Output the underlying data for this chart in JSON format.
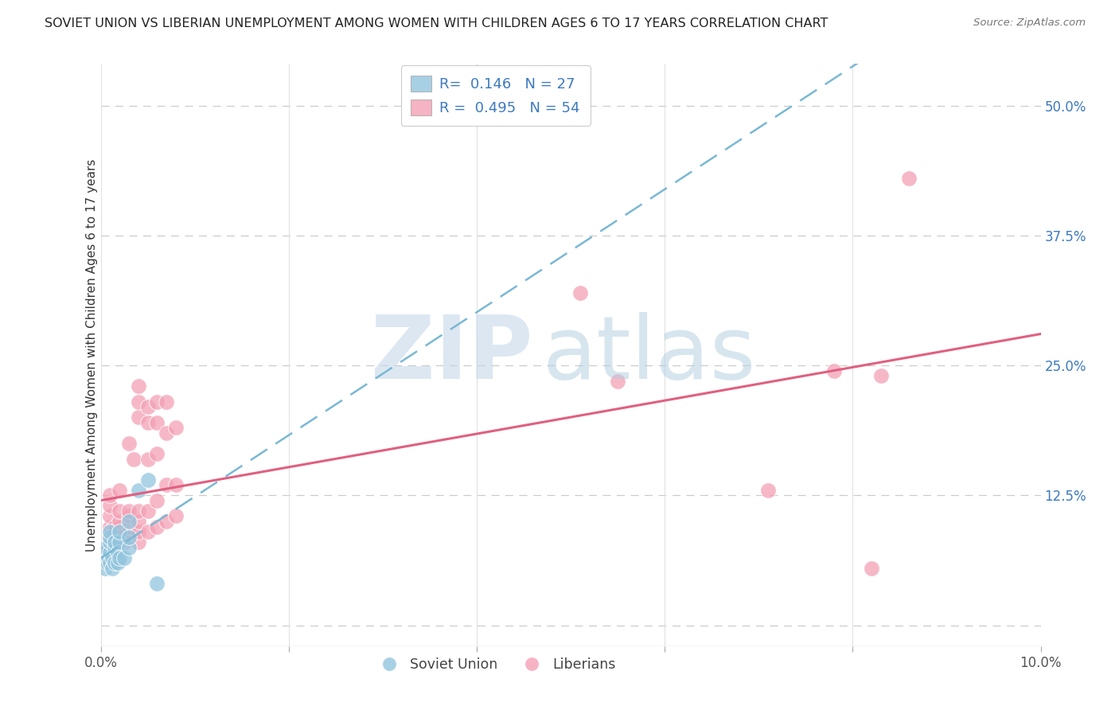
{
  "title": "SOVIET UNION VS LIBERIAN UNEMPLOYMENT AMONG WOMEN WITH CHILDREN AGES 6 TO 17 YEARS CORRELATION CHART",
  "source": "Source: ZipAtlas.com",
  "ylabel": "Unemployment Among Women with Children Ages 6 to 17 years",
  "xlim": [
    0.0,
    0.1
  ],
  "ylim": [
    -0.02,
    0.54
  ],
  "yticks": [
    0.0,
    0.125,
    0.25,
    0.375,
    0.5
  ],
  "ytick_labels": [
    "",
    "12.5%",
    "25.0%",
    "37.5%",
    "50.0%"
  ],
  "xticks": [
    0.0,
    0.02,
    0.04,
    0.06,
    0.08,
    0.1
  ],
  "xtick_labels": [
    "0.0%",
    "",
    "",
    "",
    "",
    "10.0%"
  ],
  "soviet_color": "#92c5de",
  "soviet_edge": "#5a9fc0",
  "liberian_color": "#f4a0b5",
  "liberian_edge": "#e06080",
  "trendline_soviet_color": "#7ab8d4",
  "trendline_liberian_color": "#e06080",
  "soviet_R": 0.146,
  "soviet_N": 27,
  "liberian_R": 0.495,
  "liberian_N": 54,
  "watermark_zip_color": "#c5d8ea",
  "watermark_atlas_color": "#b0cde0",
  "soviet_points": [
    [
      0.0005,
      0.055
    ],
    [
      0.0005,
      0.07
    ],
    [
      0.0005,
      0.075
    ],
    [
      0.0007,
      0.06
    ],
    [
      0.0008,
      0.065
    ],
    [
      0.001,
      0.06
    ],
    [
      0.001,
      0.07
    ],
    [
      0.001,
      0.08
    ],
    [
      0.001,
      0.085
    ],
    [
      0.001,
      0.09
    ],
    [
      0.0012,
      0.055
    ],
    [
      0.0012,
      0.065
    ],
    [
      0.0015,
      0.06
    ],
    [
      0.0015,
      0.075
    ],
    [
      0.0015,
      0.08
    ],
    [
      0.0018,
      0.06
    ],
    [
      0.0018,
      0.07
    ],
    [
      0.002,
      0.065
    ],
    [
      0.002,
      0.08
    ],
    [
      0.002,
      0.09
    ],
    [
      0.0025,
      0.065
    ],
    [
      0.003,
      0.075
    ],
    [
      0.003,
      0.085
    ],
    [
      0.003,
      0.1
    ],
    [
      0.004,
      0.13
    ],
    [
      0.005,
      0.14
    ],
    [
      0.006,
      0.04
    ]
  ],
  "liberian_points": [
    [
      0.0005,
      0.06
    ],
    [
      0.0008,
      0.075
    ],
    [
      0.001,
      0.07
    ],
    [
      0.001,
      0.085
    ],
    [
      0.001,
      0.095
    ],
    [
      0.001,
      0.105
    ],
    [
      0.001,
      0.115
    ],
    [
      0.001,
      0.125
    ],
    [
      0.0015,
      0.075
    ],
    [
      0.0015,
      0.09
    ],
    [
      0.0015,
      0.095
    ],
    [
      0.002,
      0.08
    ],
    [
      0.002,
      0.09
    ],
    [
      0.002,
      0.095
    ],
    [
      0.002,
      0.1
    ],
    [
      0.002,
      0.11
    ],
    [
      0.002,
      0.13
    ],
    [
      0.0025,
      0.08
    ],
    [
      0.003,
      0.085
    ],
    [
      0.003,
      0.095
    ],
    [
      0.003,
      0.105
    ],
    [
      0.003,
      0.11
    ],
    [
      0.003,
      0.175
    ],
    [
      0.0035,
      0.16
    ],
    [
      0.004,
      0.08
    ],
    [
      0.004,
      0.09
    ],
    [
      0.004,
      0.1
    ],
    [
      0.004,
      0.11
    ],
    [
      0.004,
      0.2
    ],
    [
      0.004,
      0.215
    ],
    [
      0.004,
      0.23
    ],
    [
      0.005,
      0.09
    ],
    [
      0.005,
      0.11
    ],
    [
      0.005,
      0.16
    ],
    [
      0.005,
      0.195
    ],
    [
      0.005,
      0.21
    ],
    [
      0.006,
      0.095
    ],
    [
      0.006,
      0.12
    ],
    [
      0.006,
      0.165
    ],
    [
      0.006,
      0.195
    ],
    [
      0.006,
      0.215
    ],
    [
      0.007,
      0.1
    ],
    [
      0.007,
      0.135
    ],
    [
      0.007,
      0.185
    ],
    [
      0.007,
      0.215
    ],
    [
      0.008,
      0.105
    ],
    [
      0.008,
      0.135
    ],
    [
      0.008,
      0.19
    ],
    [
      0.051,
      0.32
    ],
    [
      0.055,
      0.235
    ],
    [
      0.071,
      0.13
    ],
    [
      0.078,
      0.245
    ],
    [
      0.082,
      0.055
    ],
    [
      0.083,
      0.24
    ],
    [
      0.086,
      0.43
    ]
  ]
}
